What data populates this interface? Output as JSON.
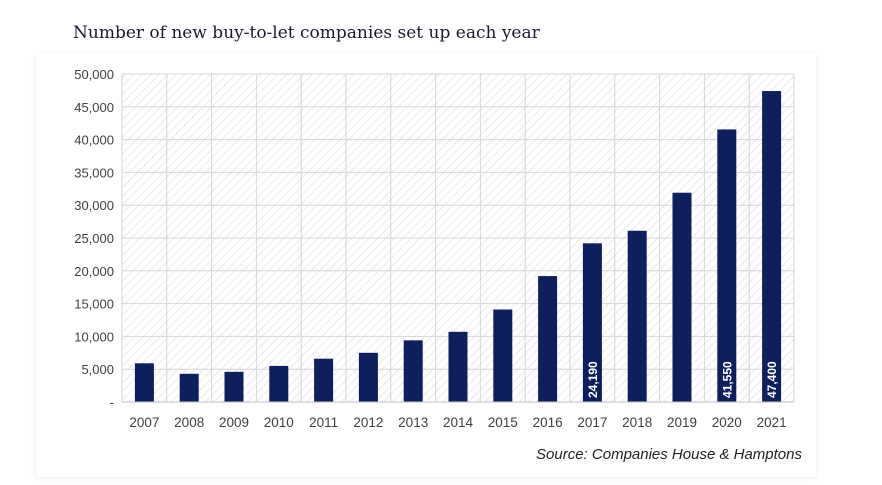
{
  "chart_data": {
    "type": "bar",
    "title": "Number of new buy-to-let companies set up each year",
    "xlabel": "",
    "ylabel": "",
    "categories": [
      "2007",
      "2008",
      "2009",
      "2010",
      "2011",
      "2012",
      "2013",
      "2014",
      "2015",
      "2016",
      "2017",
      "2018",
      "2019",
      "2020",
      "2021"
    ],
    "values": [
      5900,
      4300,
      4600,
      5500,
      6600,
      7500,
      9400,
      10700,
      14100,
      19200,
      24190,
      26100,
      31900,
      41550,
      47400
    ],
    "data_labels": {
      "2017": "24,190",
      "2020": "41,550",
      "2021": "47,400"
    },
    "ylim": [
      0,
      50000
    ],
    "yticks": [
      "-",
      "5,000",
      "10,000",
      "15,000",
      "20,000",
      "25,000",
      "30,000",
      "35,000",
      "40,000",
      "45,000",
      "50,000"
    ],
    "grid": true,
    "legend": "none",
    "colors": {
      "bar": "#0d1f5c",
      "label": "#ffffff",
      "hatch": "#e2e2e2",
      "grid": "#d6d6d6",
      "text": "#404040"
    }
  },
  "source": "Source: Companies House & Hamptons"
}
